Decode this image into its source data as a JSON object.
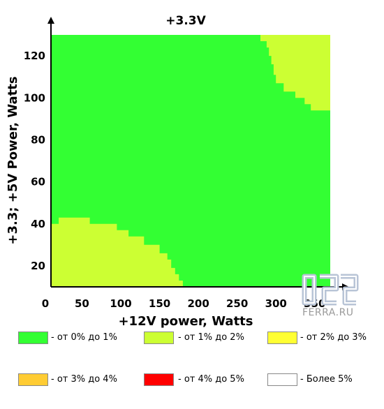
{
  "chart_data": {
    "type": "heatmap",
    "title": "+3.3V",
    "xlabel": "+12V power, Watts",
    "ylabel": "+3.3; +5V Power, Watts",
    "x_ticks": [
      "0",
      "50",
      "100",
      "150",
      "200",
      "250",
      "300",
      "350"
    ],
    "y_ticks": [
      "20",
      "40",
      "60",
      "80",
      "100",
      "120"
    ],
    "xlim": [
      10,
      370
    ],
    "ylim": [
      10,
      130
    ],
    "base_category": "от 0% до 1%",
    "regions": [
      {
        "category": "от 1% до 2%",
        "label": "lower-left region",
        "polygon": [
          [
            10,
            10
          ],
          [
            10,
            40
          ],
          [
            20,
            40
          ],
          [
            20,
            43
          ],
          [
            60,
            43
          ],
          [
            60,
            40
          ],
          [
            95,
            40
          ],
          [
            95,
            37
          ],
          [
            110,
            37
          ],
          [
            110,
            34
          ],
          [
            130,
            34
          ],
          [
            130,
            30
          ],
          [
            150,
            30
          ],
          [
            150,
            26
          ],
          [
            160,
            26
          ],
          [
            160,
            23
          ],
          [
            165,
            23
          ],
          [
            165,
            19
          ],
          [
            170,
            19
          ],
          [
            170,
            16
          ],
          [
            175,
            16
          ],
          [
            175,
            13
          ],
          [
            180,
            13
          ],
          [
            180,
            10
          ]
        ]
      },
      {
        "category": "от 1% до 2%",
        "label": "upper-right region",
        "polygon": [
          [
            280,
            130
          ],
          [
            370,
            130
          ],
          [
            370,
            94
          ],
          [
            345,
            94
          ],
          [
            345,
            97
          ],
          [
            337,
            97
          ],
          [
            337,
            100
          ],
          [
            325,
            100
          ],
          [
            325,
            103
          ],
          [
            310,
            103
          ],
          [
            310,
            107
          ],
          [
            300,
            107
          ],
          [
            300,
            111
          ],
          [
            297,
            111
          ],
          [
            297,
            116
          ],
          [
            294,
            116
          ],
          [
            294,
            120
          ],
          [
            291,
            120
          ],
          [
            291,
            124
          ],
          [
            288,
            124
          ],
          [
            288,
            127
          ],
          [
            280,
            127
          ]
        ]
      }
    ],
    "grid": false
  },
  "legend": [
    {
      "label": "- от 0% до 1%",
      "color": "#33ff33"
    },
    {
      "label": "- от 1% до 2%",
      "color": "#ccff33"
    },
    {
      "label": "- от 2% до 3%",
      "color": "#ffff33"
    },
    {
      "label": "- от 3% до 4%",
      "color": "#ffcc33"
    },
    {
      "label": "- от 4% до 5%",
      "color": "#ff0000"
    },
    {
      "label": "- Более 5%",
      "color": "#ffffff"
    }
  ],
  "colors": {
    "base": "#33ff33",
    "region": "#ccff33"
  },
  "watermark": "FERRA.RU"
}
